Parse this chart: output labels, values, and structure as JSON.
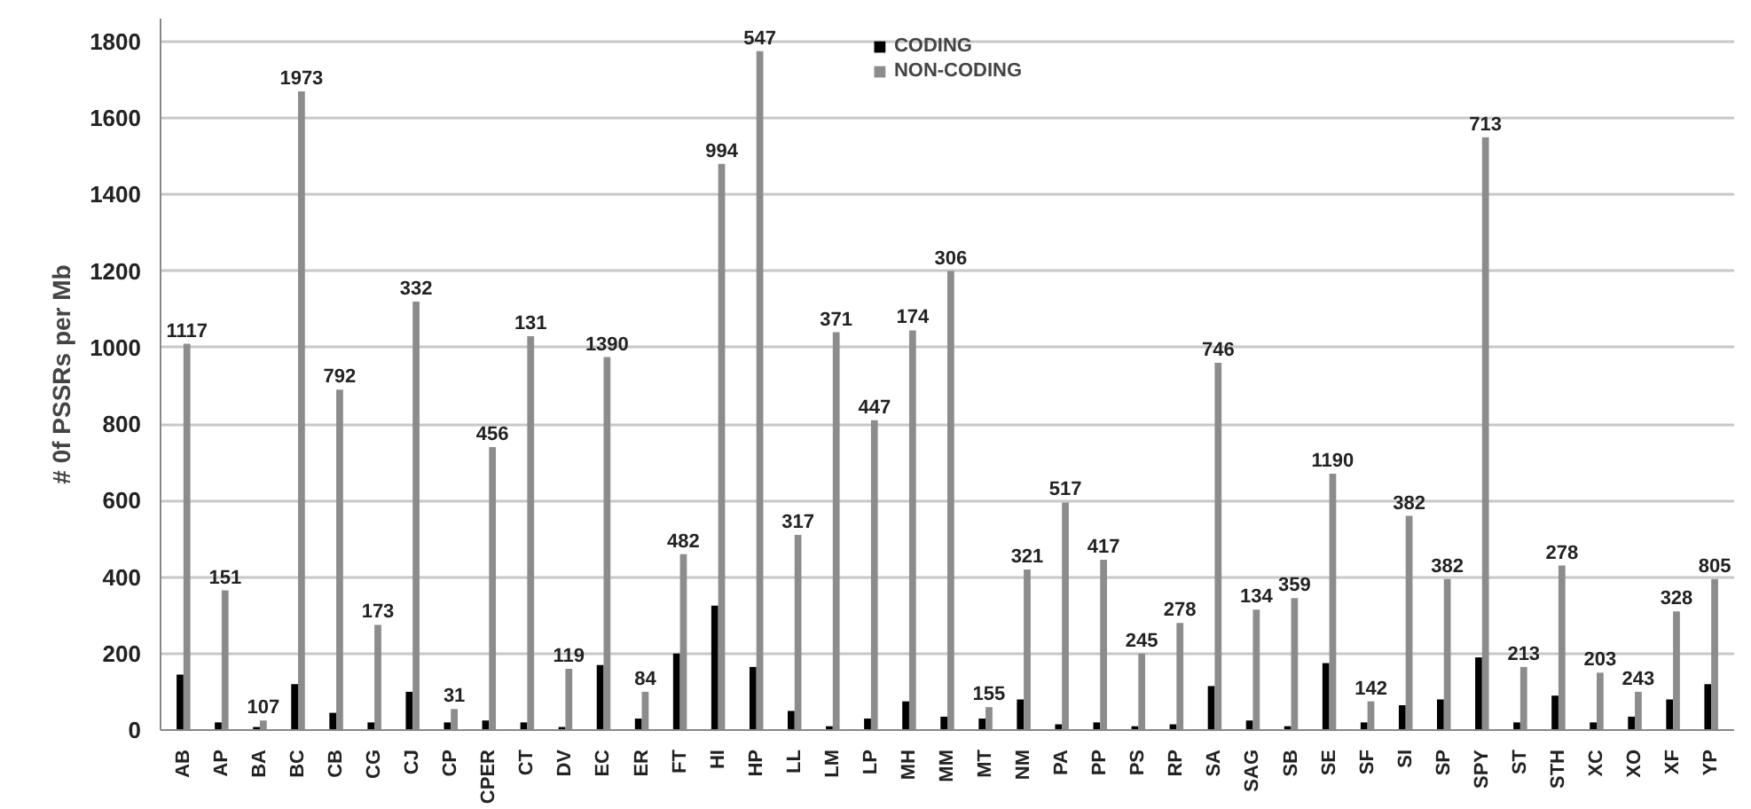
{
  "chart_data": {
    "type": "bar",
    "ylabel": "# 0f PSSRs per Mb",
    "categories": [
      "AB",
      "AP",
      "BA",
      "BC",
      "CB",
      "CG",
      "CJ",
      "CP",
      "CPER",
      "CT",
      "DV",
      "EC",
      "ER",
      "FT",
      "HI",
      "HP",
      "LL",
      "LM",
      "LP",
      "MH",
      "MM",
      "MT",
      "NM",
      "PA",
      "PP",
      "PS",
      "RP",
      "SA",
      "SAG",
      "SB",
      "SE",
      "SF",
      "SI",
      "SP",
      "SPY",
      "ST",
      "STH",
      "XC",
      "XO",
      "XF",
      "YP"
    ],
    "series": [
      {
        "name": "CODING",
        "color": "#000000",
        "values": [
          145,
          20,
          8,
          120,
          45,
          20,
          100,
          20,
          25,
          20,
          8,
          170,
          30,
          200,
          325,
          165,
          50,
          10,
          30,
          75,
          35,
          30,
          80,
          15,
          20,
          10,
          15,
          115,
          25,
          10,
          175,
          20,
          65,
          80,
          190,
          20,
          90,
          20,
          35,
          80,
          120
        ]
      },
      {
        "name": "NON-CODING",
        "color": "#8c8c8c",
        "values": [
          1010,
          365,
          25,
          1670,
          890,
          275,
          1120,
          55,
          740,
          1030,
          160,
          975,
          100,
          460,
          1480,
          1775,
          510,
          1040,
          810,
          1045,
          1200,
          60,
          420,
          595,
          445,
          200,
          280,
          960,
          315,
          345,
          670,
          75,
          560,
          395,
          1550,
          165,
          430,
          150,
          100,
          310,
          395
        ]
      }
    ],
    "annotations": [
      {
        "text": "1117",
        "x": "AB",
        "y": 1010
      },
      {
        "text": "151",
        "x": "AP",
        "y": 365
      },
      {
        "text": "107",
        "x": "BA",
        "y": 25
      },
      {
        "text": "1973",
        "x": "BC",
        "y": 1670
      },
      {
        "text": "792",
        "x": "CB",
        "y": 890
      },
      {
        "text": "173",
        "x": "CG",
        "y": 275
      },
      {
        "text": "332",
        "x": "CJ",
        "y": 1120
      },
      {
        "text": "31",
        "x": "CP",
        "y": 55
      },
      {
        "text": "456",
        "x": "CPER",
        "y": 740
      },
      {
        "text": "131",
        "x": "CT",
        "y": 1030
      },
      {
        "text": "119",
        "x": "DV",
        "y": 160
      },
      {
        "text": "1390",
        "x": "EC",
        "y": 975
      },
      {
        "text": "84",
        "x": "ER",
        "y": 100
      },
      {
        "text": "482",
        "x": "FT",
        "y": 460
      },
      {
        "text": "994",
        "x": "HI",
        "y": 1480
      },
      {
        "text": "547",
        "x": "HP",
        "y": 1775
      },
      {
        "text": "317",
        "x": "LL",
        "y": 510
      },
      {
        "text": "371",
        "x": "LM",
        "y": 1040
      },
      {
        "text": "447",
        "x": "LP",
        "y": 810
      },
      {
        "text": "174",
        "x": "MH",
        "y": 1045
      },
      {
        "text": "306",
        "x": "MM",
        "y": 1200
      },
      {
        "text": "155",
        "x": "MT",
        "y": 60
      },
      {
        "text": "321",
        "x": "NM",
        "y": 420
      },
      {
        "text": "517",
        "x": "PA",
        "y": 595
      },
      {
        "text": "417",
        "x": "PP",
        "y": 445
      },
      {
        "text": "245",
        "x": "PS",
        "y": 200
      },
      {
        "text": "278",
        "x": "RP",
        "y": 280
      },
      {
        "text": "746",
        "x": "SA",
        "y": 960
      },
      {
        "text": "134",
        "x": "SAG",
        "y": 315
      },
      {
        "text": "359",
        "x": "SB",
        "y": 345
      },
      {
        "text": "1190",
        "x": "SE",
        "y": 670
      },
      {
        "text": "142",
        "x": "SF",
        "y": 75
      },
      {
        "text": "382",
        "x": "SI",
        "y": 560
      },
      {
        "text": "382",
        "x": "SP",
        "y": 395
      },
      {
        "text": "713",
        "x": "SPY",
        "y": 1550
      },
      {
        "text": "213",
        "x": "ST",
        "y": 165
      },
      {
        "text": "278",
        "x": "STH",
        "y": 430
      },
      {
        "text": "203",
        "x": "XC",
        "y": 150
      },
      {
        "text": "243",
        "x": "XO",
        "y": 100
      },
      {
        "text": "328",
        "x": "XF",
        "y": 310
      },
      {
        "text": "805",
        "x": "YP",
        "y": 395
      }
    ],
    "ylim": [
      0,
      1860
    ],
    "yticks": [
      0,
      200,
      400,
      600,
      800,
      1000,
      1200,
      1400,
      1600,
      1800
    ],
    "grid": "y",
    "legend": "top"
  }
}
